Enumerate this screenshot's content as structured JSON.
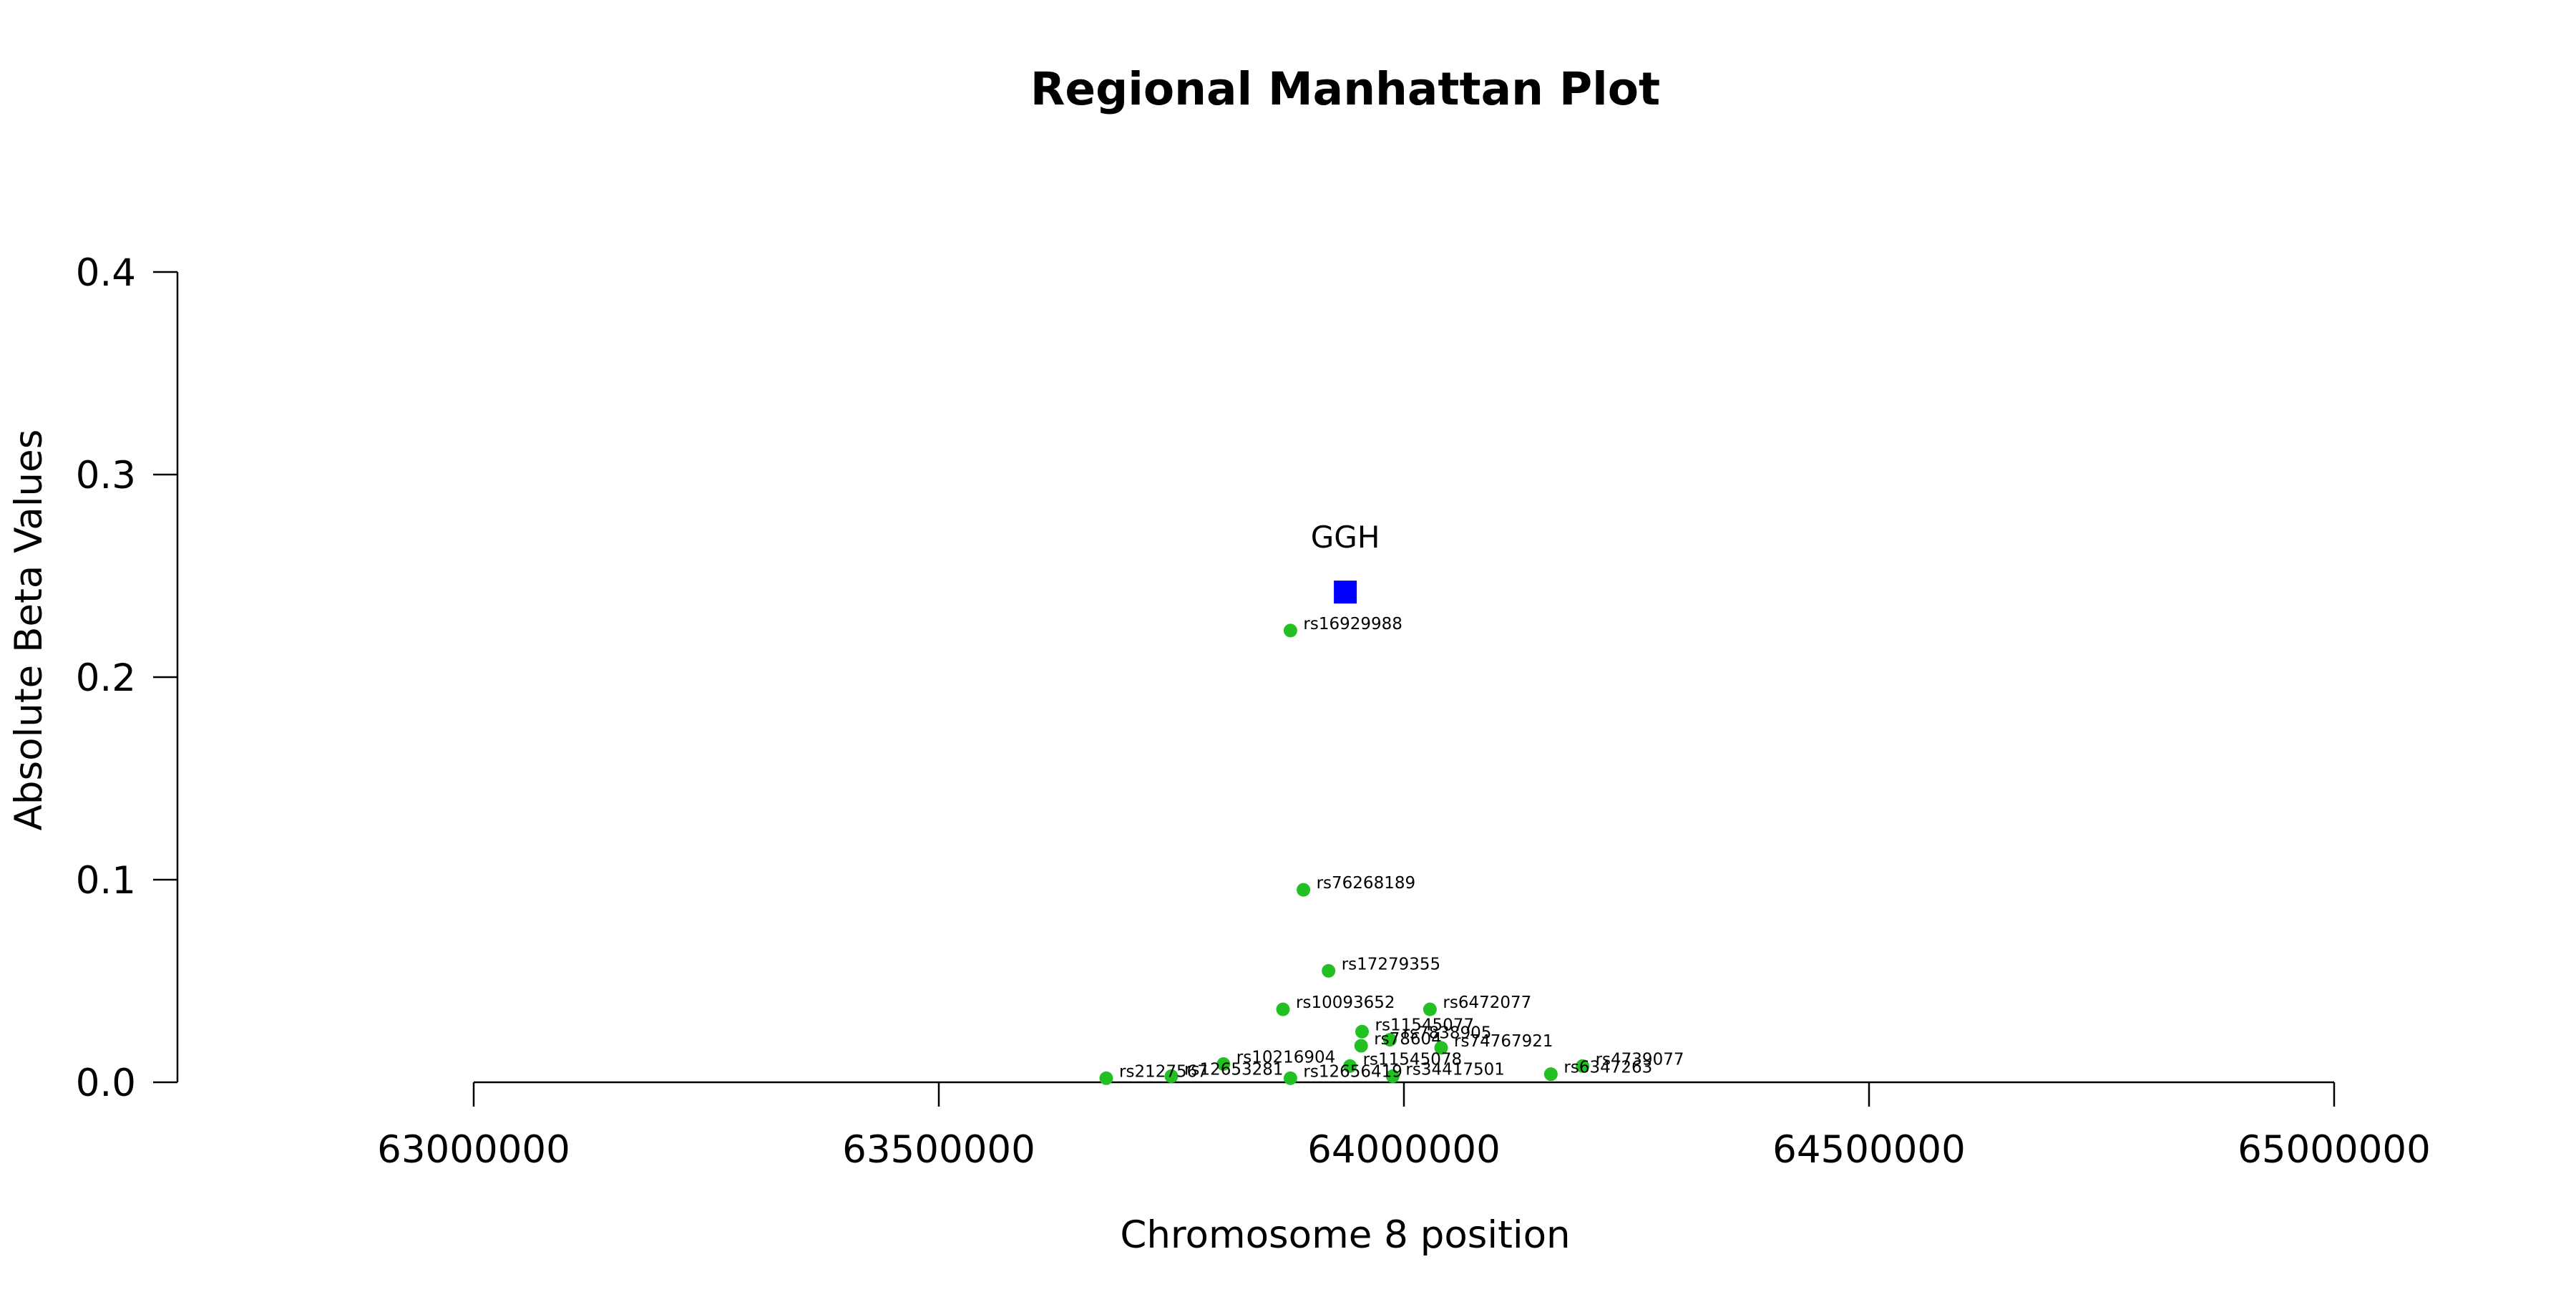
{
  "chart_data": {
    "type": "scatter",
    "title": "Regional Manhattan Plot",
    "xlabel": "Chromosome 8 position",
    "ylabel": "Absolute Beta Values",
    "xlim": [
      63000000,
      65000000
    ],
    "ylim": [
      0,
      0.4
    ],
    "x_ticks": [
      "63000000",
      "63500000",
      "64000000",
      "64500000",
      "65000000"
    ],
    "y_ticks": [
      "0.0",
      "0.1",
      "0.2",
      "0.3",
      "0.4"
    ],
    "grid": false,
    "colors": {
      "snp": "#22c022",
      "gene": "#0000ff",
      "axis": "#000000"
    },
    "gene": {
      "name": "GGH",
      "x": 63937000,
      "y": 0.242
    },
    "snps": [
      {
        "id": "rs16929988",
        "x": 63878000,
        "y": 0.223
      },
      {
        "id": "rs76268189",
        "x": 63892000,
        "y": 0.095
      },
      {
        "id": "rs17279355",
        "x": 63919000,
        "y": 0.055
      },
      {
        "id": "rs10093652",
        "x": 63870000,
        "y": 0.036
      },
      {
        "id": "rs6472077",
        "x": 64028000,
        "y": 0.036
      },
      {
        "id": "rs11545077",
        "x": 63955000,
        "y": 0.025
      },
      {
        "id": "rs7838905",
        "x": 63985000,
        "y": 0.021
      },
      {
        "id": "rs78604",
        "x": 63954000,
        "y": 0.018
      },
      {
        "id": "rs74767921",
        "x": 64040000,
        "y": 0.017
      },
      {
        "id": "rs10216904",
        "x": 63806000,
        "y": 0.009
      },
      {
        "id": "rs11545078",
        "x": 63942000,
        "y": 0.008
      },
      {
        "id": "rs4739077",
        "x": 64192000,
        "y": 0.008
      },
      {
        "id": "rs6347263",
        "x": 64158000,
        "y": 0.004
      },
      {
        "id": "rs34417501",
        "x": 63988000,
        "y": 0.003
      },
      {
        "id": "rs12656419",
        "x": 63878000,
        "y": 0.002
      },
      {
        "id": "rs12653281",
        "x": 63750000,
        "y": 0.003
      },
      {
        "id": "rs2127567",
        "x": 63680000,
        "y": 0.002
      }
    ]
  }
}
